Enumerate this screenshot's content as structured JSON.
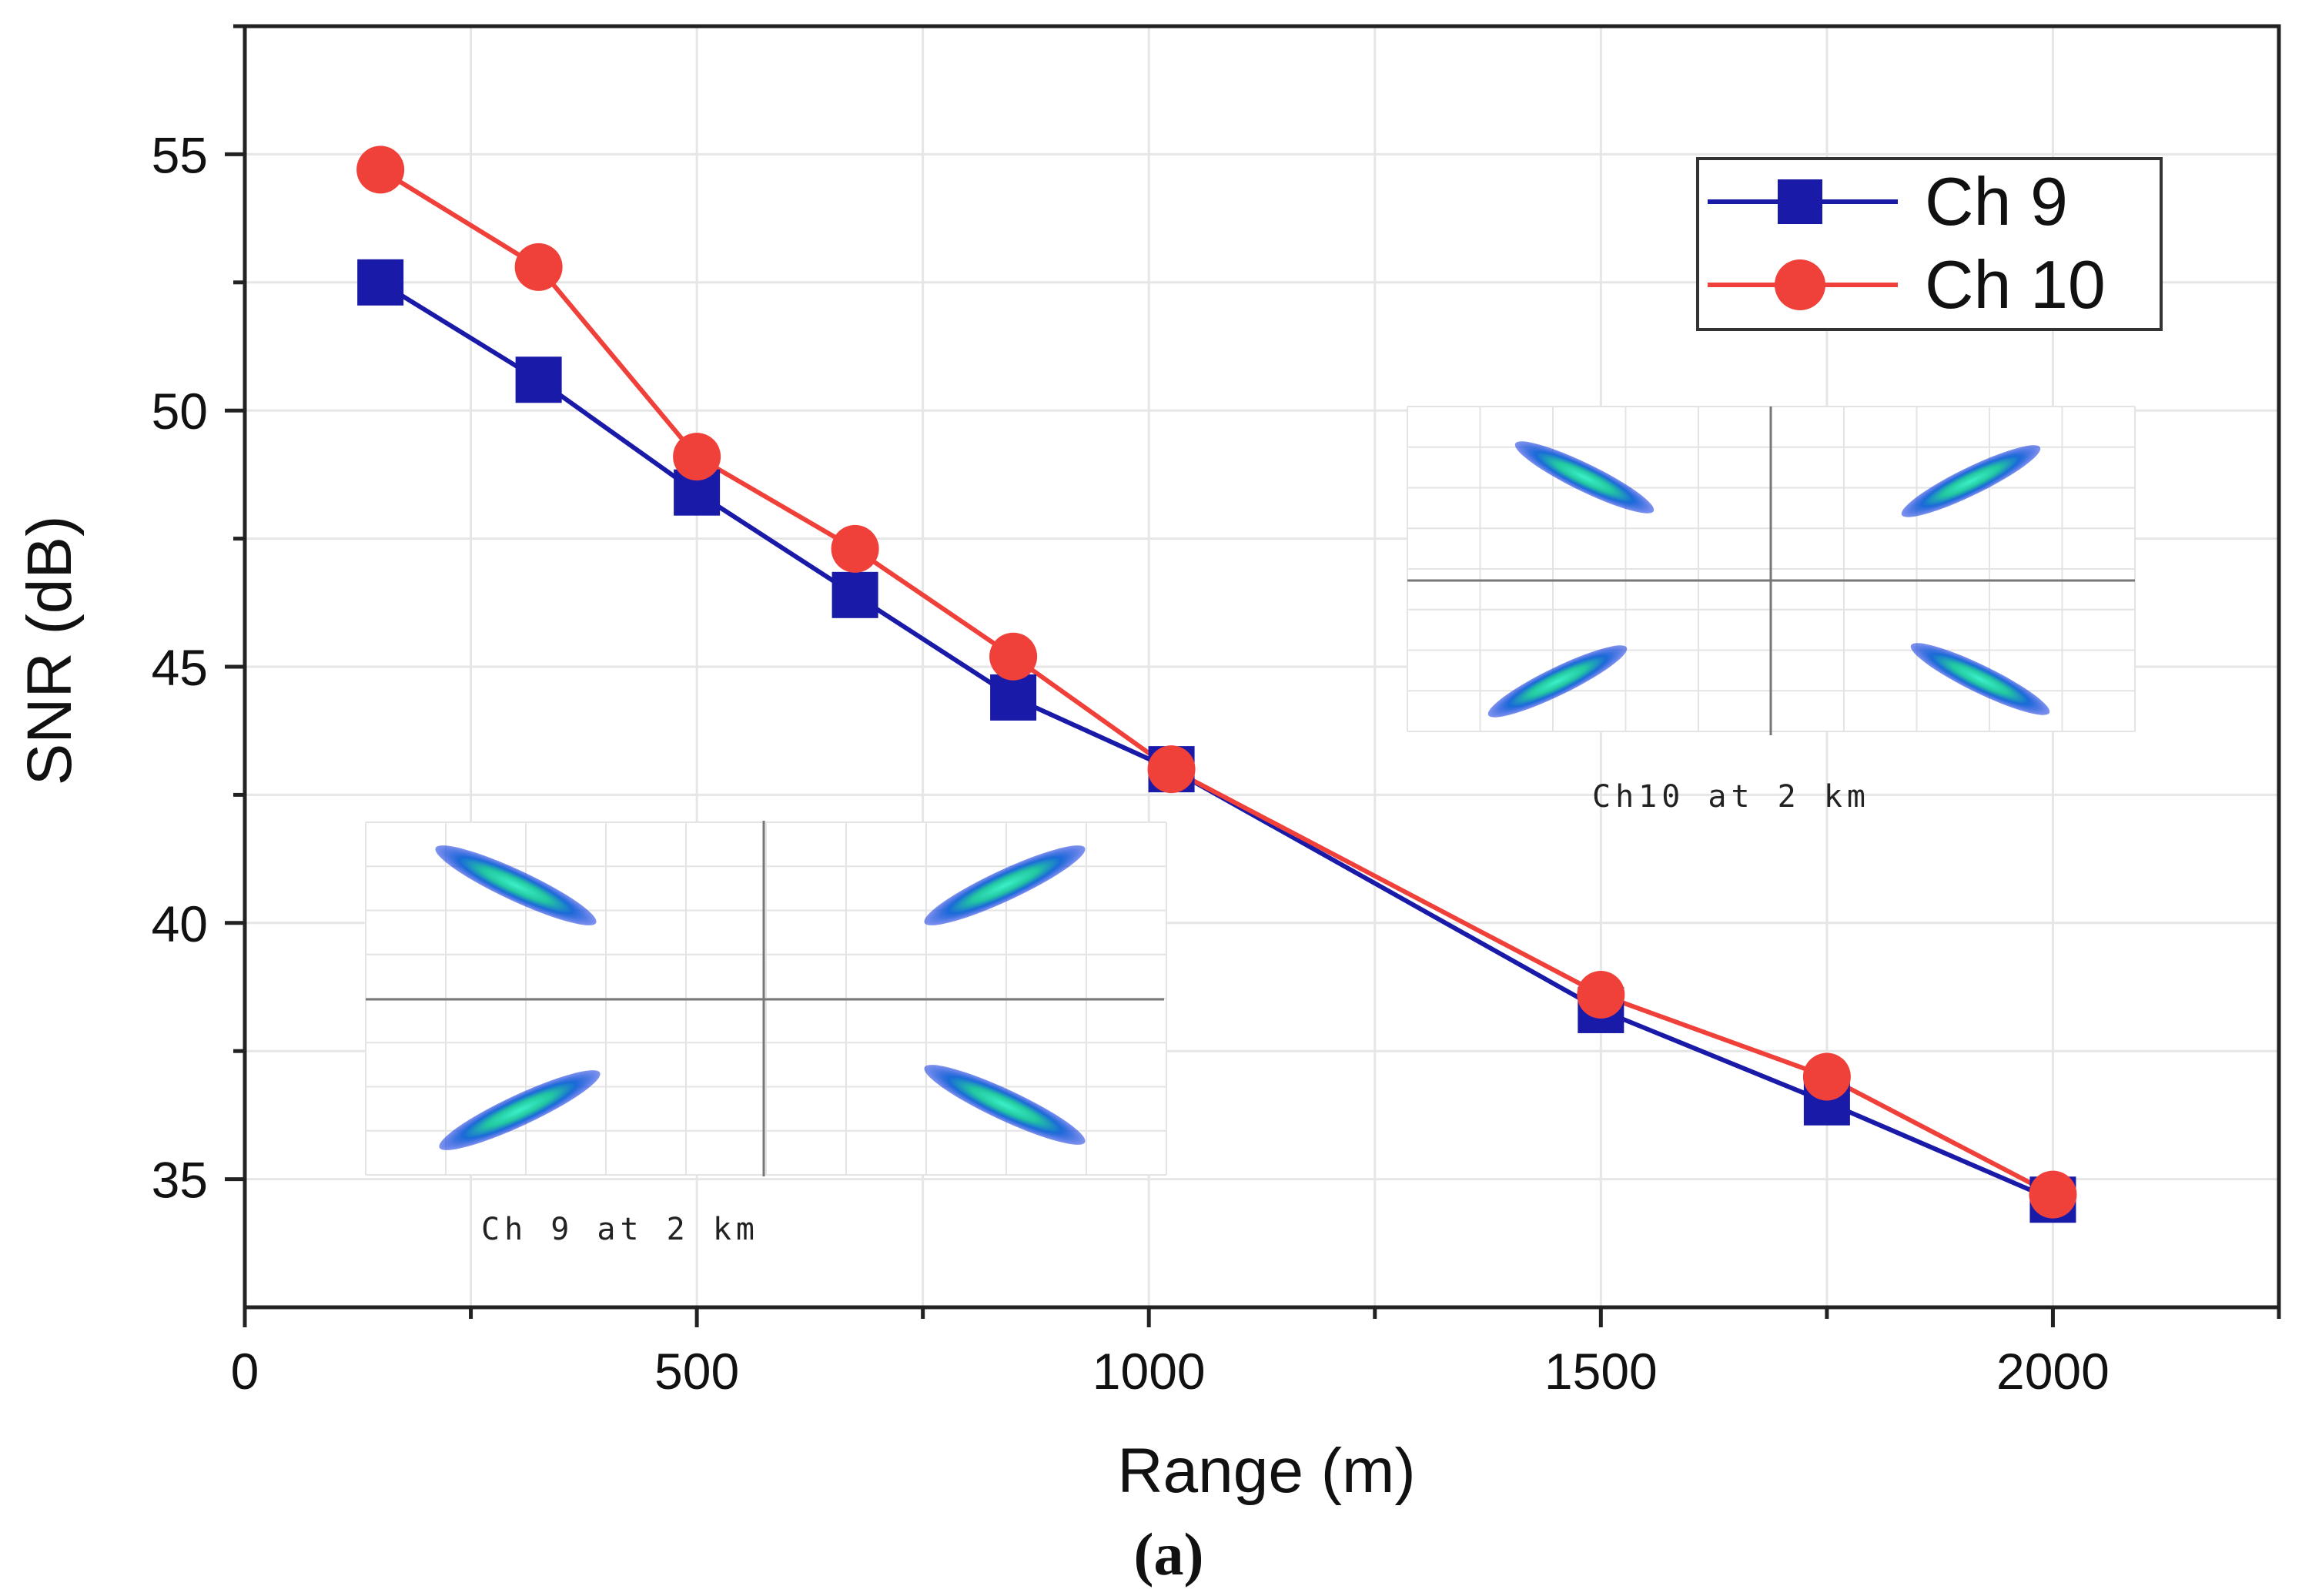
{
  "chart_data": {
    "type": "line",
    "xlabel": "Range (m)",
    "ylabel": "SNR (dB)",
    "xlim": [
      0,
      2250
    ],
    "ylim": [
      32.5,
      57.5
    ],
    "x_ticks": [
      0,
      500,
      1000,
      1500,
      2000
    ],
    "y_ticks": [
      35,
      40,
      45,
      50,
      55
    ],
    "grid": true,
    "legend_position": "top-right",
    "series": [
      {
        "name": "Ch 9",
        "color": "#1a1aa8",
        "marker": "square",
        "x": [
          150,
          325,
          500,
          675,
          850,
          1025,
          1500,
          1750,
          2000
        ],
        "y": [
          52.5,
          50.6,
          48.4,
          46.4,
          44.4,
          43.0,
          38.3,
          36.5,
          34.6
        ]
      },
      {
        "name": "Ch 10",
        "color": "#f0403a",
        "marker": "circle",
        "x": [
          150,
          325,
          500,
          675,
          850,
          1025,
          1500,
          1750,
          2000
        ],
        "y": [
          54.7,
          52.8,
          49.1,
          47.3,
          45.2,
          43.0,
          38.6,
          37.0,
          34.7
        ]
      }
    ],
    "insets": [
      {
        "caption": "Ch 9 at 2 km",
        "icon": "constellation-diagram"
      },
      {
        "caption": "Ch10 at 2 km",
        "icon": "constellation-diagram"
      }
    ]
  },
  "panel_label": "(a)"
}
